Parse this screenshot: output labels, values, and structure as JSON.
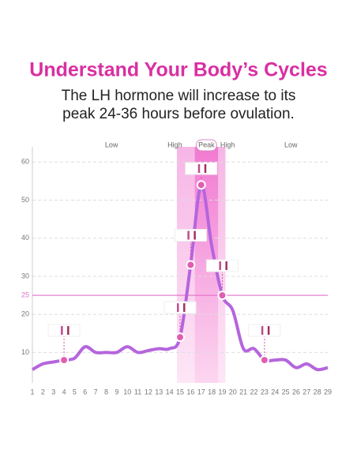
{
  "chart_data": {
    "type": "line",
    "title": "Understand Your Body’s Cycles",
    "subtitle": [
      "The LH hormone will increase to its",
      "peak 24-36 hours before ovulation."
    ],
    "phases": [
      "Low",
      "High",
      "Peak",
      "High",
      "Low"
    ],
    "categories": [
      1,
      2,
      3,
      4,
      5,
      6,
      7,
      8,
      9,
      10,
      11,
      12,
      13,
      14,
      15,
      16,
      17,
      18,
      19,
      20,
      21,
      22,
      23,
      24,
      25,
      26,
      27,
      28,
      29
    ],
    "series": [
      {
        "color": "#b565dd",
        "values": [
          5.5,
          7,
          7.5,
          8,
          8.5,
          11.5,
          10,
          10,
          10,
          11.5,
          10,
          10.5,
          11,
          11,
          14,
          33,
          54,
          38,
          25,
          21,
          11,
          11,
          8,
          8,
          8,
          6,
          7,
          5.5,
          6
        ]
      }
    ],
    "highlight_days": [
      3,
      14,
      15,
      16,
      18,
      22
    ],
    "threshold": 25,
    "threshold_color": "#e16fc8",
    "ylim": [
      2,
      64
    ],
    "yticks": [
      10,
      20,
      30,
      40,
      50,
      60
    ],
    "grid": true
  }
}
